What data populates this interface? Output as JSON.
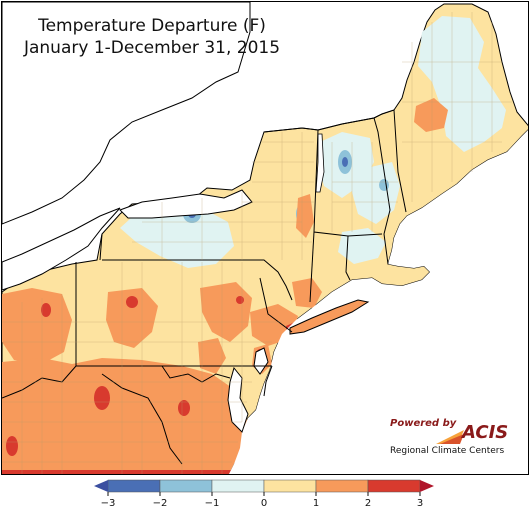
{
  "title": {
    "line1": "Temperature Departure (F)",
    "line2": "January 1-December 31, 2015"
  },
  "logo": {
    "powered_by": "Powered by",
    "name": "ACIS",
    "subtitle": "Regional Climate Centers"
  },
  "legend": {
    "ticks": [
      "−3",
      "−2",
      "−1",
      "0",
      "1",
      "2",
      "3"
    ],
    "bins": [
      {
        "from": -3,
        "to": -2,
        "color": "#4a6fb5"
      },
      {
        "from": -2,
        "to": -1,
        "color": "#8ec2d9"
      },
      {
        "from": -1,
        "to": 0,
        "color": "#e0f3f2"
      },
      {
        "from": 0,
        "to": 1,
        "color": "#fde3a0"
      },
      {
        "from": 1,
        "to": 2,
        "color": "#f79a5b"
      },
      {
        "from": 2,
        "to": 3,
        "color": "#d83a2e"
      }
    ],
    "below_color": "#3b4fa0",
    "above_color": "#b0162b"
  },
  "colors": {
    "water": "#ffffff",
    "near_normal_warm": "#fde3a0",
    "near_normal_cool": "#e0f3f2",
    "warm": "#f79a5b",
    "hot": "#d83a2e",
    "cool": "#8ec2d9",
    "cold": "#4a6fb5",
    "border": "#000000",
    "county_line": "#b89c6a"
  }
}
